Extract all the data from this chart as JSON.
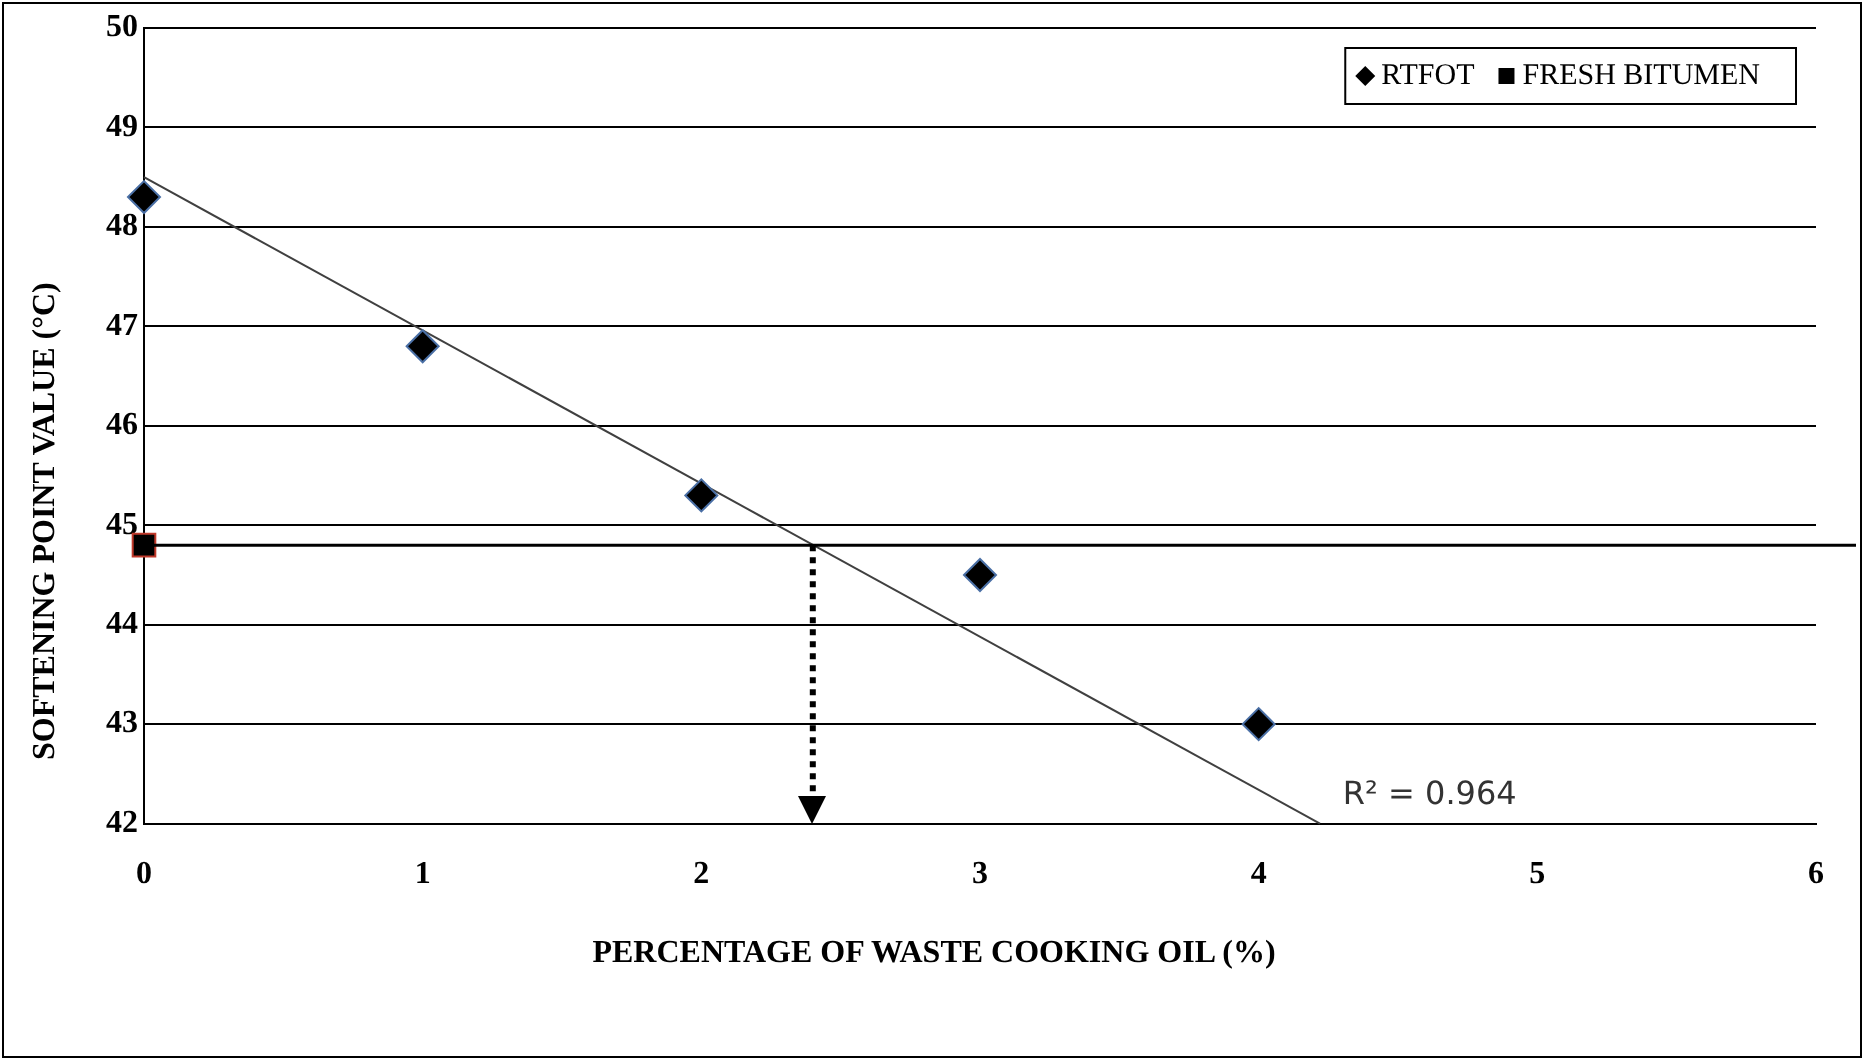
{
  "chart_data": {
    "type": "scatter",
    "xlabel": "PERCENTAGE OF WASTE COOKING OIL (%)",
    "ylabel": "SOFTENING POINT VALUE (°C)",
    "series": [
      {
        "name": "RTFOT",
        "color": "#000000",
        "marker": "diamond",
        "x": [
          0,
          1,
          2,
          3,
          4
        ],
        "values": [
          48.3,
          46.8,
          45.3,
          44.5,
          43.0
        ]
      },
      {
        "name": "FRESH BITUMEN",
        "color": "#000000",
        "marker": "square",
        "x": [
          0
        ],
        "values": [
          44.8
        ]
      },
      {
        "type": "line",
        "color": "#404040",
        "marker": "none",
        "x": [
          0,
          4.22
        ],
        "values": [
          48.5,
          42
        ]
      }
    ],
    "xlim": [
      0,
      6
    ],
    "xticks": [
      0,
      1,
      2,
      3,
      4,
      5,
      6
    ],
    "ylim": [
      42,
      50
    ],
    "yticks": [
      42,
      43,
      44,
      45,
      46,
      47,
      48,
      49,
      50
    ],
    "grid": "y",
    "legend": "top right",
    "ref_lines": [
      {
        "axis": "y",
        "value": 44.8,
        "color": "#000000",
        "line_style": "solid"
      },
      {
        "axis": "x",
        "value": 2.4,
        "color": "#000000",
        "line_style": "dotted"
      }
    ],
    "annotations": [
      "R² = 0.964"
    ]
  }
}
